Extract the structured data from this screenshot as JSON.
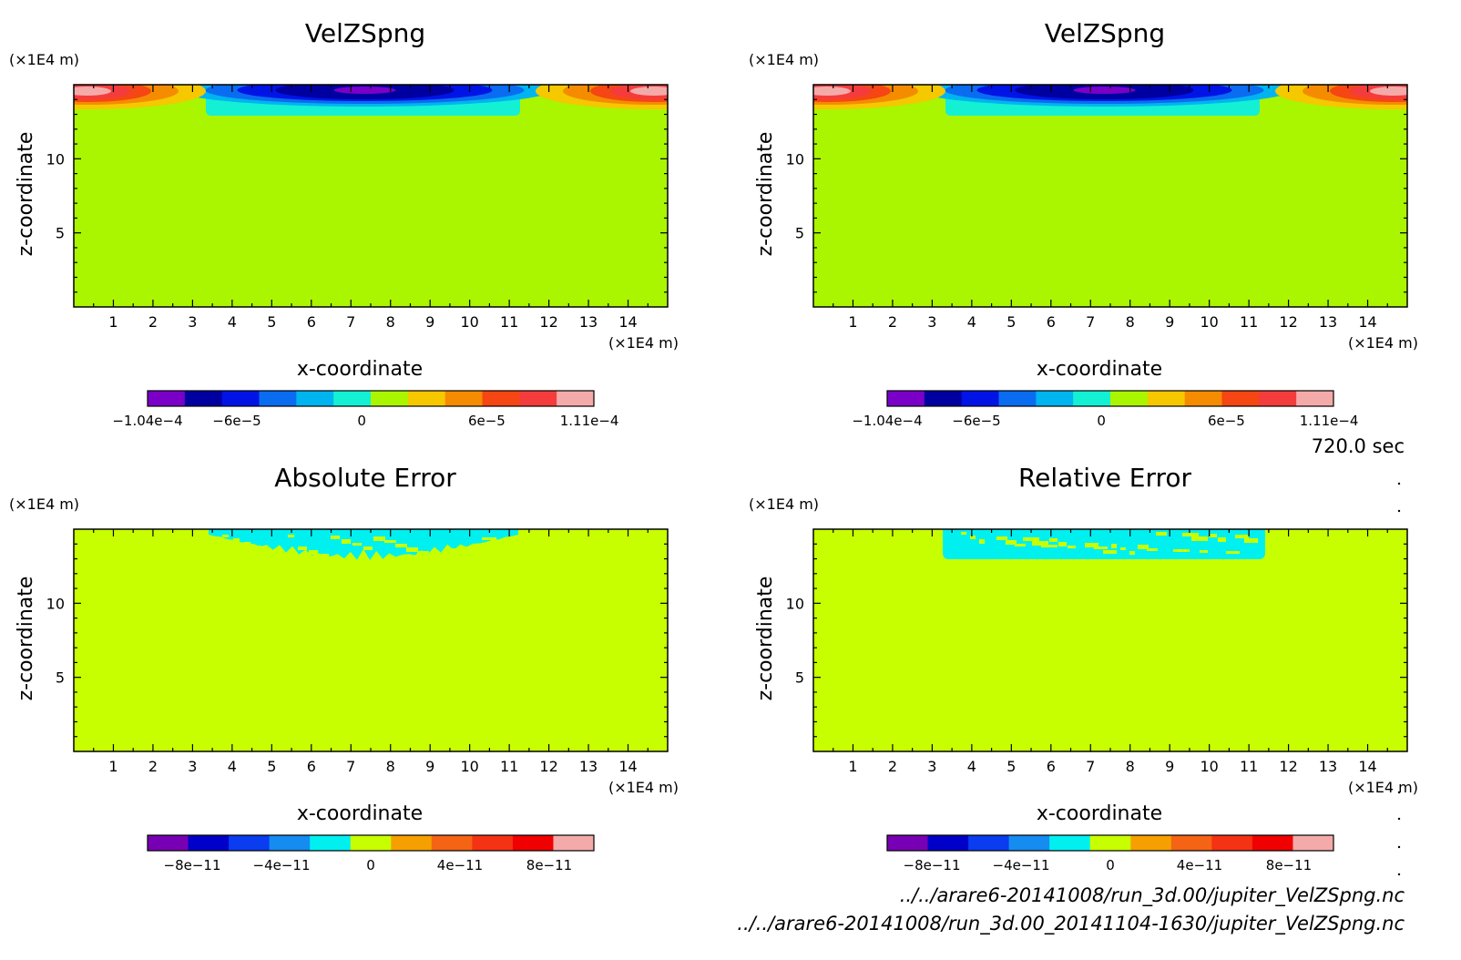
{
  "chart_data": [
    {
      "type": "heatmap",
      "title": "VelZSpng",
      "xlabel": "x-coordinate",
      "ylabel": "z-coordinate",
      "x_unit": "(×1E4 m)",
      "y_unit": "(×1E4 m)",
      "xlim": [
        0,
        15
      ],
      "ylim": [
        0,
        15
      ],
      "xticks": [
        "1",
        "2",
        "3",
        "4",
        "5",
        "6",
        "7",
        "8",
        "9",
        "10",
        "11",
        "12",
        "13",
        "14"
      ],
      "yticks": [
        "5",
        "10"
      ],
      "field": "velocity",
      "colorbar": {
        "colors": [
          "#7a00c8",
          "#0000a0",
          "#0014e6",
          "#0a6cf0",
          "#00b4f0",
          "#14f0d4",
          "#aaf500",
          "#f5c800",
          "#f58c00",
          "#f54614",
          "#f53c3c",
          "#f5aaaa"
        ],
        "labels": [
          "−1.04e−4",
          "−6e−5",
          "0",
          "6e−5",
          "1.11e−4"
        ]
      }
    },
    {
      "type": "heatmap",
      "title": "VelZSpng",
      "xlabel": "x-coordinate",
      "ylabel": "z-coordinate",
      "x_unit": "(×1E4 m)",
      "y_unit": "(×1E4 m)",
      "xlim": [
        0,
        15
      ],
      "ylim": [
        0,
        15
      ],
      "xticks": [
        "1",
        "2",
        "3",
        "4",
        "5",
        "6",
        "7",
        "8",
        "9",
        "10",
        "11",
        "12",
        "13",
        "14"
      ],
      "yticks": [
        "5",
        "10"
      ],
      "field": "velocity",
      "colorbar": {
        "colors": [
          "#7a00c8",
          "#0000a0",
          "#0014e6",
          "#0a6cf0",
          "#00b4f0",
          "#14f0d4",
          "#aaf500",
          "#f5c800",
          "#f58c00",
          "#f54614",
          "#f53c3c",
          "#f5aaaa"
        ],
        "labels": [
          "−1.04e−4",
          "−6e−5",
          "0",
          "6e−5",
          "1.11e−4"
        ]
      }
    },
    {
      "type": "heatmap",
      "title": "Absolute Error",
      "xlabel": "x-coordinate",
      "ylabel": "z-coordinate",
      "x_unit": "(×1E4 m)",
      "y_unit": "(×1E4 m)",
      "xlim": [
        0,
        15
      ],
      "ylim": [
        0,
        15
      ],
      "xticks": [
        "1",
        "2",
        "3",
        "4",
        "5",
        "6",
        "7",
        "8",
        "9",
        "10",
        "11",
        "12",
        "13",
        "14"
      ],
      "yticks": [
        "5",
        "10"
      ],
      "field": "abs_error",
      "colorbar": {
        "colors": [
          "#7800b4",
          "#0000c8",
          "#0a3cf0",
          "#148cf0",
          "#00f0f0",
          "#c8ff00",
          "#f5a000",
          "#f56414",
          "#f53214",
          "#f00000",
          "#f5aaaa"
        ],
        "labels": [
          "−8e−11",
          "−4e−11",
          "0",
          "4e−11",
          "8e−11"
        ]
      }
    },
    {
      "type": "heatmap",
      "title": "Relative Error",
      "xlabel": "x-coordinate",
      "ylabel": "z-coordinate",
      "x_unit": "(×1E4 m)",
      "y_unit": "(×1E4 m)",
      "xlim": [
        0,
        15
      ],
      "ylim": [
        0,
        15
      ],
      "xticks": [
        "1",
        "2",
        "3",
        "4",
        "5",
        "6",
        "7",
        "8",
        "9",
        "10",
        "11",
        "12",
        "13",
        "14"
      ],
      "yticks": [
        "5",
        "10"
      ],
      "field": "rel_error",
      "colorbar": {
        "colors": [
          "#7800b4",
          "#0000c8",
          "#0a3cf0",
          "#148cf0",
          "#00f0f0",
          "#c8ff00",
          "#f5a000",
          "#f56414",
          "#f53214",
          "#f00000",
          "#f5aaaa"
        ],
        "labels": [
          "−8e−11",
          "−4e−11",
          "0",
          "4e−11",
          "8e−11"
        ]
      }
    }
  ],
  "time_label": "720.0 sec",
  "file_paths": [
    "../../arare6-20141008/run_3d.00/jupiter_VelZSpng.nc",
    "../../arare6-20141008/run_3d.00_20141104-1630/jupiter_VelZSpng.nc"
  ]
}
